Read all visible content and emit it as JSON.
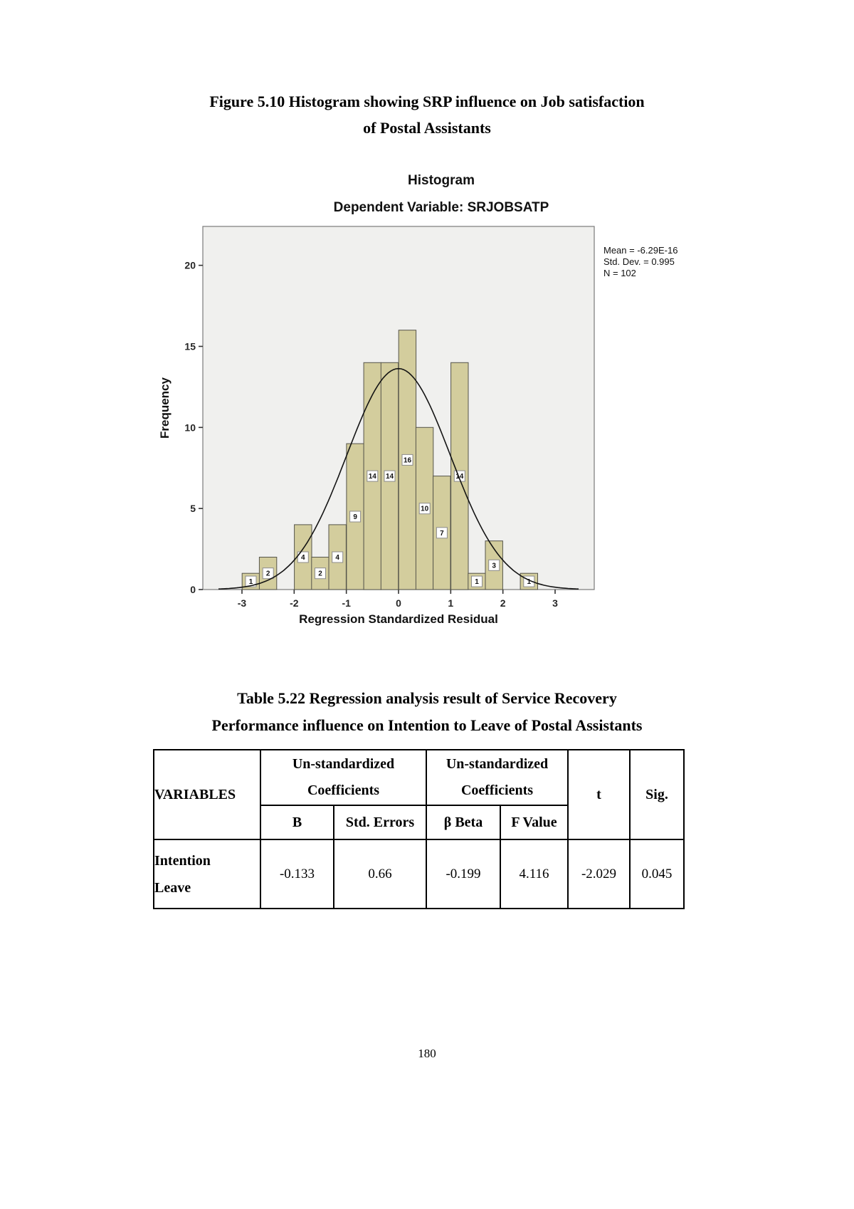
{
  "page": {
    "figure_title_line1": "Figure 5.10 Histogram showing SRP influence on Job satisfaction",
    "figure_title_line2": "of Postal Assistants",
    "table_title_line1": "Table 5.22 Regression analysis result of Service Recovery",
    "table_title_line2": "Performance influence on Intention to Leave of Postal Assistants",
    "page_number": "180"
  },
  "histogram": {
    "title": "Histogram",
    "subtitle": "Dependent Variable: SRJOBSATP",
    "xlabel": "Regression Standardized Residual",
    "ylabel": "Frequency",
    "stats": [
      "Mean = -6.29E-16",
      "Std. Dev. = 0.995",
      "N = 102"
    ]
  },
  "chart_data": {
    "type": "bar",
    "subtype": "histogram",
    "title": "Histogram",
    "subtitle": "Dependent Variable: SRJOBSATP",
    "xlabel": "Regression Standardized Residual",
    "ylabel": "Frequency",
    "bin_width": 0.3333,
    "bin_centers": [
      -2.83,
      -2.5,
      -2.17,
      -1.83,
      -1.5,
      -1.17,
      -0.83,
      -0.5,
      -0.17,
      0.17,
      0.5,
      0.83,
      1.17,
      1.5,
      1.83,
      2.17,
      2.5
    ],
    "frequencies": [
      1,
      2,
      0,
      4,
      2,
      4,
      9,
      14,
      14,
      16,
      10,
      7,
      14,
      1,
      3,
      0,
      1
    ],
    "bar_labels": [
      "1",
      "2",
      "",
      "4",
      "2",
      "4",
      "9",
      "14",
      "14",
      "16",
      "10",
      "7",
      "14",
      "1",
      "3",
      "",
      "1"
    ],
    "x_ticks": [
      -3,
      -2,
      -1,
      0,
      1,
      2,
      3
    ],
    "y_ticks": [
      0,
      5,
      10,
      15,
      20
    ],
    "xlim": [
      -3.75,
      3.75
    ],
    "ylim": [
      0,
      22.4
    ],
    "total_n": 102,
    "normal_curve": {
      "mean": 0,
      "std_dev": 0.995,
      "n": 102
    },
    "legend_position": "right",
    "grid": false,
    "bar_color": "#d3cd9d",
    "bar_border_color": "#55544a",
    "plot_bg": "#f0f0ee",
    "plot_border": "#7a7a7a",
    "stats_box": {
      "mean": "-6.29E-16",
      "std_dev": "0.995",
      "n": "102"
    }
  },
  "table": {
    "header": {
      "variables": "VARIABLES",
      "group1": "Un-standardized Coefficients",
      "group2": "Un-standardized Coefficients",
      "sub_b": "B",
      "sub_std_errors": "Std. Errors",
      "sub_beta": "β Beta",
      "sub_f_value": "F Value",
      "t": "t",
      "sig": "Sig."
    },
    "rows": [
      {
        "variable_line1": "Intention",
        "variable_line2": "Leave",
        "b": "-0.133",
        "std_errors": "0.66",
        "beta": "-0.199",
        "f_value": "4.116",
        "t": "-2.029",
        "sig": "0.045"
      }
    ]
  }
}
